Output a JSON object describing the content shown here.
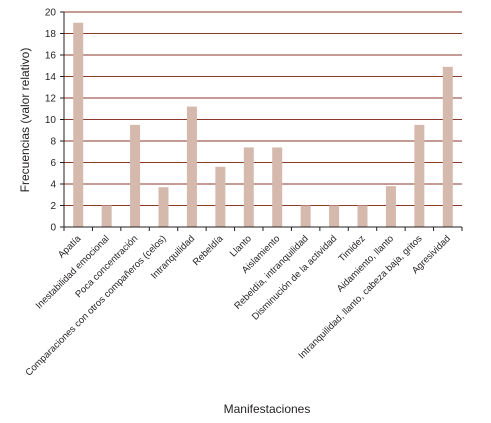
{
  "chart_data": {
    "type": "bar",
    "title": "",
    "xlabel": "Manifestaciones",
    "ylabel": "Frecuencias (valor relativo)",
    "ylim": [
      0,
      20
    ],
    "yticks": [
      0,
      2,
      4,
      6,
      8,
      10,
      12,
      14,
      16,
      18,
      20
    ],
    "grid": true,
    "categories": [
      "Apatía",
      "Inestabilidad emocional",
      "Poca concentración",
      "Comparaciones con otros compañeros (celos)",
      "Intranquilidad",
      "Rebeldía",
      "Llanto",
      "Aislamiento",
      "Rebeldía, intranquilidad",
      "Disminución de la actividad",
      "Timidez",
      "Aidamiento, llanto",
      "Intranquilidad, llanto, cabeza baja, gritos",
      "Agresividad"
    ],
    "values": [
      19,
      2,
      9.5,
      3.7,
      11.2,
      5.6,
      7.4,
      7.4,
      2,
      2,
      2,
      3.8,
      9.5,
      14.9
    ],
    "colors": {
      "bar": "#d6b9ad",
      "grid": "#8b3a2b",
      "axis": "#231f20"
    }
  }
}
